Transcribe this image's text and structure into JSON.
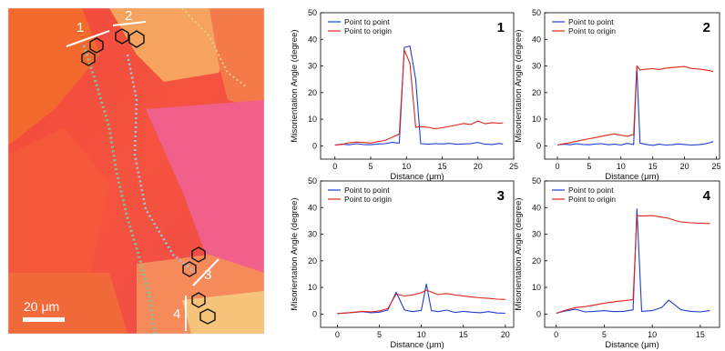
{
  "map": {
    "scale_label": "20 μm",
    "boundary_labels": [
      "1",
      "2",
      "3",
      "4"
    ]
  },
  "chart_data": [
    {
      "type": "line",
      "panel": "1",
      "xlabel": "Distance (μm)",
      "ylabel": "Misorientation Angle (degree)",
      "xlim": [
        -2,
        25
      ],
      "ylim": [
        -5,
        50
      ],
      "xticks": [
        0,
        5,
        10,
        15,
        20,
        25
      ],
      "yticks": [
        0,
        10,
        20,
        30,
        40,
        50
      ],
      "legend": "top-left",
      "series": [
        {
          "name": "Point to point",
          "color": "#1f3fd0",
          "x": [
            0,
            1,
            2,
            3,
            4,
            5,
            6,
            7,
            8,
            9,
            9.7,
            10.5,
            11.3,
            12,
            13,
            14,
            15,
            16,
            17,
            18,
            19,
            20,
            21,
            22,
            23,
            23.5
          ],
          "y": [
            0.3,
            0.6,
            0.4,
            0.8,
            0.5,
            0.4,
            0.7,
            0.8,
            1.3,
            1.0,
            37,
            37.5,
            25,
            0.8,
            0.6,
            0.8,
            0.7,
            0.9,
            0.6,
            0.7,
            0.8,
            1.3,
            0.6,
            0.5,
            0.9,
            0.6
          ]
        },
        {
          "name": "Point to origin",
          "color": "#e0241b",
          "x": [
            0,
            1,
            2,
            3,
            4,
            5,
            6,
            7,
            8,
            9,
            9.7,
            10.5,
            11.3,
            12,
            13,
            14,
            15,
            16,
            17,
            18,
            19,
            20,
            21,
            22,
            23,
            23.5
          ],
          "y": [
            0.3,
            0.5,
            1.2,
            1.4,
            1.3,
            1.0,
            1.6,
            2.0,
            3.2,
            4.5,
            36,
            31,
            7.0,
            7.2,
            7.0,
            6.4,
            6.8,
            7.3,
            7.8,
            8.4,
            8.0,
            9.3,
            8.3,
            8.7,
            8.5,
            8.6
          ]
        }
      ]
    },
    {
      "type": "line",
      "panel": "2",
      "xlabel": "Distance (μm)",
      "ylabel": "Misorientation Angle (degree)",
      "xlim": [
        -2,
        25.5
      ],
      "ylim": [
        -5,
        50
      ],
      "xticks": [
        0,
        5,
        10,
        15,
        20,
        25
      ],
      "yticks": [
        0,
        10,
        20,
        30,
        40,
        50
      ],
      "legend": "top-left",
      "series": [
        {
          "name": "Point to point",
          "color": "#1f3fd0",
          "x": [
            0,
            1,
            2,
            3,
            4,
            5,
            6,
            7,
            8,
            9,
            10,
            11,
            12,
            12.5,
            13,
            14,
            15,
            16,
            17,
            18,
            19,
            20,
            21,
            22,
            23,
            24,
            24.5
          ],
          "y": [
            0.3,
            0.6,
            0.4,
            0.8,
            0.5,
            0.4,
            0.7,
            0.8,
            0.4,
            0.6,
            0.3,
            0.9,
            0.5,
            29.5,
            1.0,
            0.5,
            0.2,
            0.6,
            0.3,
            0.4,
            0.7,
            0.5,
            0.3,
            0.4,
            0.6,
            1.2,
            1.6
          ]
        },
        {
          "name": "Point to origin",
          "color": "#e0241b",
          "x": [
            0,
            1,
            2,
            3,
            4,
            5,
            6,
            7,
            8,
            9,
            10,
            11,
            12,
            12.5,
            13,
            14,
            15,
            16,
            17,
            18,
            19,
            20,
            21,
            22,
            23,
            24,
            24.5
          ],
          "y": [
            0.3,
            0.8,
            1.2,
            1.7,
            2.2,
            2.7,
            3.1,
            3.6,
            4.1,
            4.5,
            4.0,
            3.6,
            4.3,
            30,
            28.5,
            28.8,
            29.0,
            28.7,
            29.2,
            29.4,
            29.6,
            29.8,
            29.1,
            28.9,
            28.6,
            28.2,
            27.9
          ]
        }
      ]
    },
    {
      "type": "line",
      "panel": "3",
      "xlabel": "Distance (μm)",
      "ylabel": "Misorientation Angle (degree)",
      "xlim": [
        -2,
        21
      ],
      "ylim": [
        -5,
        50
      ],
      "xticks": [
        0,
        5,
        10,
        15,
        20
      ],
      "yticks": [
        0,
        10,
        20,
        30,
        40,
        50
      ],
      "legend": "top-left",
      "series": [
        {
          "name": "Point to point",
          "color": "#1f3fd0",
          "x": [
            0,
            1,
            2,
            3,
            4,
            5,
            6,
            7,
            8,
            9,
            10,
            10.6,
            11.2,
            12,
            13,
            14,
            15,
            16,
            17,
            18,
            19,
            20
          ],
          "y": [
            0.2,
            0.4,
            0.6,
            0.9,
            0.5,
            0.7,
            1.5,
            8.2,
            1.5,
            0.9,
            1.4,
            11.3,
            1.3,
            0.9,
            1.5,
            0.6,
            1.0,
            0.7,
            0.5,
            0.9,
            0.4,
            0.3
          ]
        },
        {
          "name": "Point to origin",
          "color": "#e0241b",
          "x": [
            0,
            1,
            2,
            3,
            4,
            5,
            6,
            7,
            8,
            9,
            10,
            10.6,
            11.2,
            12,
            13,
            14,
            15,
            16,
            17,
            18,
            19,
            20
          ],
          "y": [
            0.2,
            0.4,
            0.7,
            1.0,
            0.8,
            1.2,
            2.0,
            7.5,
            6.8,
            7.2,
            8.0,
            9.0,
            8.3,
            7.3,
            7.7,
            7.2,
            6.8,
            6.4,
            6.1,
            5.9,
            5.6,
            5.5
          ]
        }
      ]
    },
    {
      "type": "line",
      "panel": "4",
      "xlabel": "Distance (μm)",
      "ylabel": "Misorientation Angle (degree)",
      "xlim": [
        -1.2,
        17
      ],
      "ylim": [
        -5,
        50
      ],
      "xticks": [
        0,
        5,
        10,
        15
      ],
      "yticks": [
        0,
        10,
        20,
        30,
        40,
        50
      ],
      "legend": "top-left",
      "series": [
        {
          "name": "Point to point",
          "color": "#1f3fd0",
          "x": [
            0,
            1,
            2,
            3,
            4,
            5,
            6,
            7,
            8,
            8.4,
            8.9,
            10,
            11,
            11.7,
            12.5,
            13,
            14,
            15,
            16
          ],
          "y": [
            0.3,
            1.2,
            1.8,
            0.8,
            1.0,
            1.3,
            0.9,
            1.0,
            1.6,
            39.5,
            1.0,
            1.3,
            2.5,
            5.2,
            3.0,
            1.6,
            1.0,
            0.8,
            1.3
          ]
        },
        {
          "name": "Point to origin",
          "color": "#e0241b",
          "x": [
            0,
            1,
            2,
            3,
            4,
            5,
            6,
            7,
            8,
            8.4,
            8.9,
            10,
            11,
            11.7,
            12.5,
            13,
            14,
            15,
            16
          ],
          "y": [
            0.3,
            1.5,
            2.4,
            2.8,
            3.4,
            4.1,
            4.6,
            5.0,
            5.4,
            37.0,
            36.8,
            37.0,
            36.4,
            36.0,
            35.0,
            34.6,
            34.3,
            34.1,
            34.0
          ]
        }
      ]
    }
  ]
}
